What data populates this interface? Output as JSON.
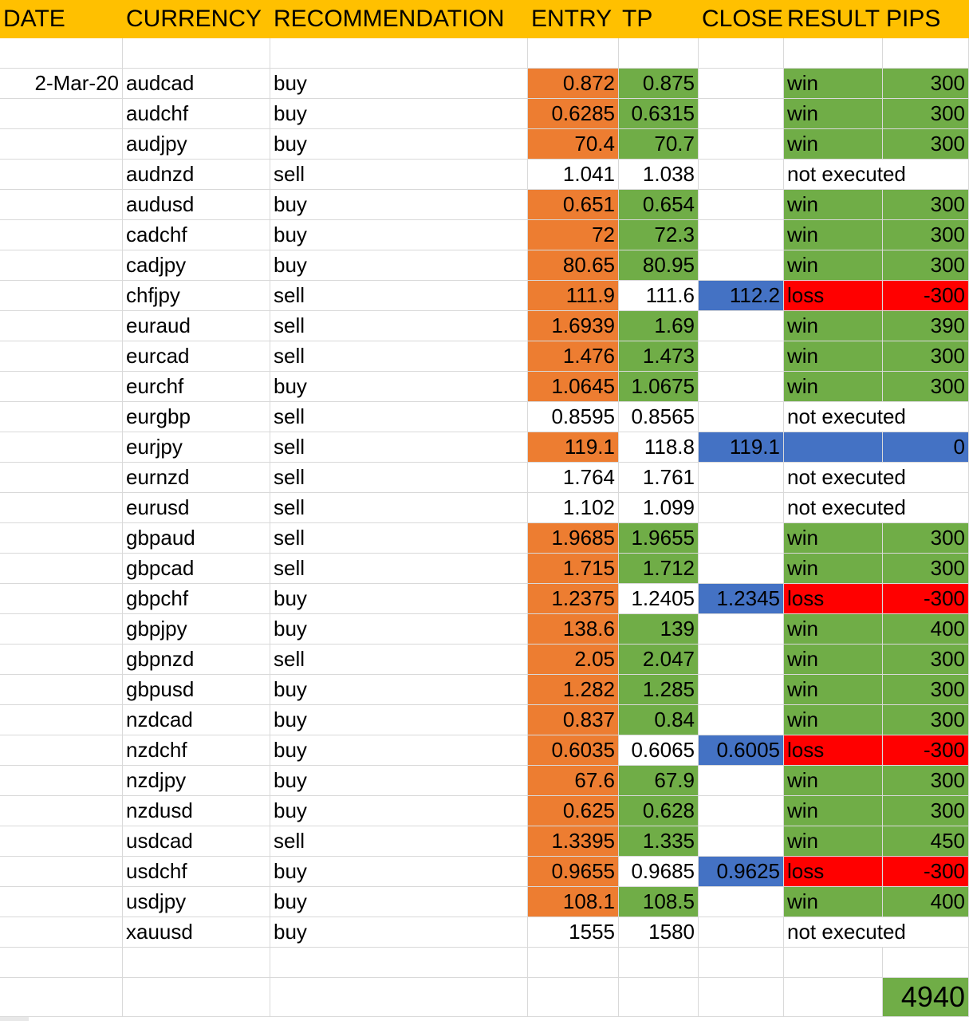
{
  "headers": {
    "date": "DATE",
    "currency": "CURRENCY",
    "recommendation": "RECOMMENDATION",
    "entry": "ENTRY",
    "tp": "TP",
    "close": "CLOSE",
    "result": "RESULT",
    "pips": "PIPS"
  },
  "colors": {
    "header": "#ffc000",
    "entry_triggered": "#ed7d31",
    "win": "#70ad47",
    "stop_close": "#4472c4",
    "loss": "#ff0000"
  },
  "trades": [
    {
      "date": "2-Mar-20",
      "currency": "audcad",
      "rec": "buy",
      "entry": "0.872",
      "tp": "0.875",
      "close": "",
      "result": "win",
      "pips": "300",
      "status": "win"
    },
    {
      "date": "",
      "currency": "audchf",
      "rec": "buy",
      "entry": "0.6285",
      "tp": "0.6315",
      "close": "",
      "result": "win",
      "pips": "300",
      "status": "win"
    },
    {
      "date": "",
      "currency": "audjpy",
      "rec": "buy",
      "entry": "70.4",
      "tp": "70.7",
      "close": "",
      "result": "win",
      "pips": "300",
      "status": "win"
    },
    {
      "date": "",
      "currency": "audnzd",
      "rec": "sell",
      "entry": "1.041",
      "tp": "1.038",
      "close": "",
      "result": "not executed",
      "pips": "",
      "status": "none"
    },
    {
      "date": "",
      "currency": "audusd",
      "rec": "buy",
      "entry": "0.651",
      "tp": "0.654",
      "close": "",
      "result": "win",
      "pips": "300",
      "status": "win"
    },
    {
      "date": "",
      "currency": "cadchf",
      "rec": "buy",
      "entry": "72",
      "tp": "72.3",
      "close": "",
      "result": "win",
      "pips": "300",
      "status": "win"
    },
    {
      "date": "",
      "currency": "cadjpy",
      "rec": "buy",
      "entry": "80.65",
      "tp": "80.95",
      "close": "",
      "result": "win",
      "pips": "300",
      "status": "win"
    },
    {
      "date": "",
      "currency": "chfjpy",
      "rec": "sell",
      "entry": "111.9",
      "tp": "111.6",
      "close": "112.2",
      "result": "loss",
      "pips": "-300",
      "status": "loss"
    },
    {
      "date": "",
      "currency": "euraud",
      "rec": "sell",
      "entry": "1.6939",
      "tp": "1.69",
      "close": "",
      "result": "win",
      "pips": "390",
      "status": "win"
    },
    {
      "date": "",
      "currency": "eurcad",
      "rec": "sell",
      "entry": "1.476",
      "tp": "1.473",
      "close": "",
      "result": "win",
      "pips": "300",
      "status": "win"
    },
    {
      "date": "",
      "currency": "eurchf",
      "rec": "buy",
      "entry": "1.0645",
      "tp": "1.0675",
      "close": "",
      "result": "win",
      "pips": "300",
      "status": "win"
    },
    {
      "date": "",
      "currency": "eurgbp",
      "rec": "sell",
      "entry": "0.8595",
      "tp": "0.8565",
      "close": "",
      "result": "not executed",
      "pips": "",
      "status": "none"
    },
    {
      "date": "",
      "currency": "eurjpy",
      "rec": "sell",
      "entry": "119.1",
      "tp": "118.8",
      "close": "119.1",
      "result": "",
      "pips": "0",
      "status": "breakeven"
    },
    {
      "date": "",
      "currency": "eurnzd",
      "rec": "sell",
      "entry": "1.764",
      "tp": "1.761",
      "close": "",
      "result": "not executed",
      "pips": "",
      "status": "none"
    },
    {
      "date": "",
      "currency": "eurusd",
      "rec": "sell",
      "entry": "1.102",
      "tp": "1.099",
      "close": "",
      "result": "not executed",
      "pips": "",
      "status": "none"
    },
    {
      "date": "",
      "currency": "gbpaud",
      "rec": "sell",
      "entry": "1.9685",
      "tp": "1.9655",
      "close": "",
      "result": "win",
      "pips": "300",
      "status": "win"
    },
    {
      "date": "",
      "currency": "gbpcad",
      "rec": "sell",
      "entry": "1.715",
      "tp": "1.712",
      "close": "",
      "result": "win",
      "pips": "300",
      "status": "win"
    },
    {
      "date": "",
      "currency": "gbpchf",
      "rec": "buy",
      "entry": "1.2375",
      "tp": "1.2405",
      "close": "1.2345",
      "result": "loss",
      "pips": "-300",
      "status": "loss"
    },
    {
      "date": "",
      "currency": "gbpjpy",
      "rec": "buy",
      "entry": "138.6",
      "tp": "139",
      "close": "",
      "result": "win",
      "pips": "400",
      "status": "win"
    },
    {
      "date": "",
      "currency": "gbpnzd",
      "rec": "sell",
      "entry": "2.05",
      "tp": "2.047",
      "close": "",
      "result": "win",
      "pips": "300",
      "status": "win"
    },
    {
      "date": "",
      "currency": "gbpusd",
      "rec": "buy",
      "entry": "1.282",
      "tp": "1.285",
      "close": "",
      "result": "win",
      "pips": "300",
      "status": "win"
    },
    {
      "date": "",
      "currency": "nzdcad",
      "rec": "buy",
      "entry": "0.837",
      "tp": "0.84",
      "close": "",
      "result": "win",
      "pips": "300",
      "status": "win"
    },
    {
      "date": "",
      "currency": "nzdchf",
      "rec": "buy",
      "entry": "0.6035",
      "tp": "0.6065",
      "close": "0.6005",
      "result": "loss",
      "pips": "-300",
      "status": "loss"
    },
    {
      "date": "",
      "currency": "nzdjpy",
      "rec": "buy",
      "entry": "67.6",
      "tp": "67.9",
      "close": "",
      "result": "win",
      "pips": "300",
      "status": "win"
    },
    {
      "date": "",
      "currency": "nzdusd",
      "rec": "buy",
      "entry": "0.625",
      "tp": "0.628",
      "close": "",
      "result": "win",
      "pips": "300",
      "status": "win"
    },
    {
      "date": "",
      "currency": "usdcad",
      "rec": "sell",
      "entry": "1.3395",
      "tp": "1.335",
      "close": "",
      "result": "win",
      "pips": "450",
      "status": "win"
    },
    {
      "date": "",
      "currency": "usdchf",
      "rec": "buy",
      "entry": "0.9655",
      "tp": "0.9685",
      "close": "0.9625",
      "result": "loss",
      "pips": "-300",
      "status": "loss"
    },
    {
      "date": "",
      "currency": "usdjpy",
      "rec": "buy",
      "entry": "108.1",
      "tp": "108.5",
      "close": "",
      "result": "win",
      "pips": "400",
      "status": "win"
    },
    {
      "date": "",
      "currency": "xauusd",
      "rec": "buy",
      "entry": "1555",
      "tp": "1580",
      "close": "",
      "result": "not executed",
      "pips": "",
      "status": "none"
    }
  ],
  "total_pips": "4940"
}
